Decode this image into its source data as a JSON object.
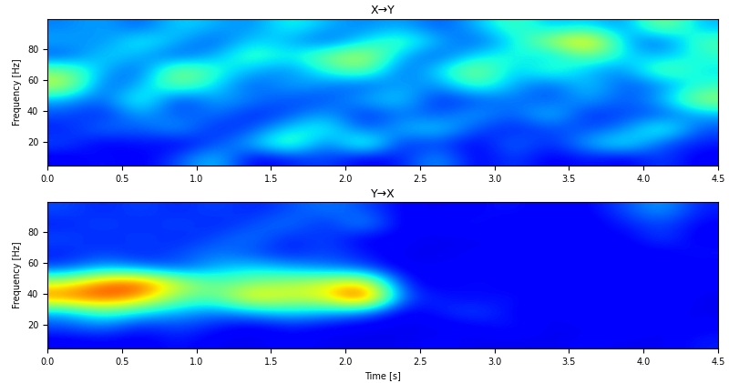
{
  "chart_data": [
    {
      "type": "heatmap",
      "title": "X→Y",
      "y_label": "Frequency [Hz]",
      "xlim": [
        0,
        4.5
      ],
      "ylim": [
        5,
        99
      ],
      "xticks": [
        {
          "value": 0,
          "label": "0.0"
        },
        {
          "value": 0.5,
          "label": "0.5"
        },
        {
          "value": 1,
          "label": "1.0"
        },
        {
          "value": 1.5,
          "label": "1.5"
        },
        {
          "value": 2,
          "label": "2.0"
        },
        {
          "value": 2.5,
          "label": "2.5"
        },
        {
          "value": 3,
          "label": "3.0"
        },
        {
          "value": 3.5,
          "label": "3.5"
        },
        {
          "value": 4,
          "label": "4.0"
        },
        {
          "value": 4.5,
          "label": "4.5"
        }
      ],
      "yticks": [
        20,
        40,
        60,
        80
      ],
      "value_range": [
        0,
        1
      ],
      "cells": [
        [
          0.1,
          0.15,
          0.1,
          0.2,
          0.35,
          0.1,
          0.15,
          0.2,
          0.1,
          0.15,
          0.3,
          0.1,
          0.2,
          0.1,
          0.15,
          0.1,
          0.2,
          0.1
        ],
        [
          0.2,
          0.1,
          0.15,
          0.1,
          0.2,
          0.3,
          0.5,
          0.2,
          0.5,
          0.15,
          0.2,
          0.1,
          0.25,
          0.15,
          0.3,
          0.4,
          0.2,
          0.15
        ],
        [
          0.15,
          0.25,
          0.2,
          0.3,
          0.15,
          0.2,
          0.35,
          0.4,
          0.2,
          0.3,
          0.35,
          0.2,
          0.15,
          0.2,
          0.2,
          0.25,
          0.45,
          0.2
        ],
        [
          0.2,
          0.15,
          0.3,
          0.2,
          0.25,
          0.15,
          0.2,
          0.3,
          0.15,
          0.25,
          0.2,
          0.3,
          0.2,
          0.35,
          0.15,
          0.2,
          0.2,
          0.3
        ],
        [
          0.3,
          0.2,
          0.45,
          0.15,
          0.3,
          0.25,
          0.2,
          0.2,
          0.3,
          0.35,
          0.15,
          0.2,
          0.25,
          0.2,
          0.3,
          0.2,
          0.3,
          0.55
        ],
        [
          0.6,
          0.2,
          0.3,
          0.5,
          0.35,
          0.2,
          0.3,
          0.25,
          0.2,
          0.3,
          0.25,
          0.45,
          0.3,
          0.2,
          0.35,
          0.2,
          0.25,
          0.4
        ],
        [
          0.5,
          0.3,
          0.2,
          0.55,
          0.4,
          0.3,
          0.25,
          0.4,
          0.5,
          0.2,
          0.35,
          0.55,
          0.3,
          0.45,
          0.3,
          0.25,
          0.5,
          0.35
        ],
        [
          0.2,
          0.35,
          0.3,
          0.2,
          0.3,
          0.45,
          0.35,
          0.5,
          0.6,
          0.3,
          0.2,
          0.35,
          0.4,
          0.3,
          0.5,
          0.35,
          0.3,
          0.4
        ],
        [
          0.3,
          0.25,
          0.4,
          0.3,
          0.2,
          0.35,
          0.3,
          0.2,
          0.35,
          0.45,
          0.3,
          0.2,
          0.35,
          0.55,
          0.75,
          0.3,
          0.2,
          0.45
        ],
        [
          0.25,
          0.3,
          0.2,
          0.35,
          0.3,
          0.25,
          0.4,
          0.3,
          0.25,
          0.3,
          0.2,
          0.3,
          0.45,
          0.3,
          0.35,
          0.25,
          0.55,
          0.3
        ]
      ]
    },
    {
      "type": "heatmap",
      "title": "Y→X",
      "x_label": "Time [s]",
      "y_label": "Frequency [Hz]",
      "xlim": [
        0,
        4.5
      ],
      "ylim": [
        5,
        99
      ],
      "xticks": [
        {
          "value": 0,
          "label": "0.0"
        },
        {
          "value": 0.5,
          "label": "0.5"
        },
        {
          "value": 1,
          "label": "1.0"
        },
        {
          "value": 1.5,
          "label": "1.5"
        },
        {
          "value": 2,
          "label": "2.0"
        },
        {
          "value": 2.5,
          "label": "2.5"
        },
        {
          "value": 3,
          "label": "3.0"
        },
        {
          "value": 3.5,
          "label": "3.5"
        },
        {
          "value": 4,
          "label": "4.0"
        },
        {
          "value": 4.5,
          "label": "4.5"
        }
      ],
      "yticks": [
        20,
        40,
        60,
        80
      ],
      "value_range": [
        0,
        1
      ],
      "cells": [
        [
          0.1,
          0.12,
          0.1,
          0.15,
          0.1,
          0.1,
          0.12,
          0.1,
          0.1,
          0.1,
          0.12,
          0.1,
          0.1,
          0.1,
          0.12,
          0.1,
          0.1,
          0.15
        ],
        [
          0.2,
          0.25,
          0.15,
          0.2,
          0.15,
          0.1,
          0.15,
          0.12,
          0.1,
          0.1,
          0.1,
          0.12,
          0.15,
          0.1,
          0.1,
          0.15,
          0.1,
          0.12
        ],
        [
          0.3,
          0.45,
          0.35,
          0.3,
          0.25,
          0.3,
          0.35,
          0.3,
          0.25,
          0.1,
          0.15,
          0.2,
          0.12,
          0.1,
          0.15,
          0.1,
          0.12,
          0.1
        ],
        [
          0.8,
          0.85,
          0.75,
          0.5,
          0.45,
          0.7,
          0.6,
          0.65,
          0.95,
          0.2,
          0.15,
          0.12,
          0.15,
          0.1,
          0.12,
          0.1,
          0.15,
          0.1
        ],
        [
          0.6,
          0.8,
          0.85,
          0.6,
          0.45,
          0.5,
          0.55,
          0.6,
          0.7,
          0.15,
          0.1,
          0.15,
          0.1,
          0.12,
          0.1,
          0.15,
          0.1,
          0.12
        ],
        [
          0.2,
          0.3,
          0.25,
          0.2,
          0.3,
          0.35,
          0.3,
          0.25,
          0.2,
          0.1,
          0.12,
          0.1,
          0.15,
          0.1,
          0.12,
          0.1,
          0.15,
          0.1
        ],
        [
          0.15,
          0.2,
          0.15,
          0.2,
          0.25,
          0.2,
          0.15,
          0.2,
          0.15,
          0.1,
          0.1,
          0.12,
          0.1,
          0.15,
          0.1,
          0.12,
          0.1,
          0.15
        ],
        [
          0.2,
          0.15,
          0.2,
          0.15,
          0.2,
          0.25,
          0.15,
          0.2,
          0.1,
          0.12,
          0.1,
          0.1,
          0.12,
          0.1,
          0.15,
          0.1,
          0.2,
          0.1
        ],
        [
          0.15,
          0.2,
          0.15,
          0.2,
          0.15,
          0.2,
          0.25,
          0.15,
          0.3,
          0.1,
          0.12,
          0.15,
          0.1,
          0.12,
          0.1,
          0.15,
          0.2,
          0.12
        ],
        [
          0.2,
          0.15,
          0.2,
          0.15,
          0.2,
          0.15,
          0.2,
          0.25,
          0.2,
          0.12,
          0.1,
          0.12,
          0.15,
          0.1,
          0.12,
          0.2,
          0.3,
          0.15
        ]
      ]
    }
  ]
}
